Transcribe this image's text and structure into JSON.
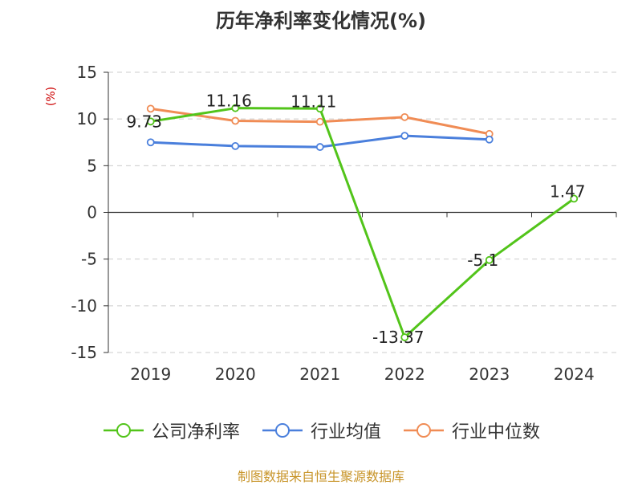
{
  "title": "历年净利率变化情况(%)",
  "footer": "制图数据来自恒生聚源数据库",
  "chart_data": {
    "type": "line",
    "title": "历年净利率变化情况(%)",
    "ylabel": "(%)",
    "ylim": [
      -15,
      15
    ],
    "yticks": [
      15,
      10,
      5,
      0,
      -5,
      -10,
      -15
    ],
    "categories": [
      "2019",
      "2020",
      "2021",
      "2022",
      "2023",
      "2024"
    ],
    "grid": true,
    "legend_position": "bottom",
    "series": [
      {
        "name": "公司净利率",
        "color": "#52c41a",
        "values": [
          9.73,
          11.16,
          11.11,
          -13.37,
          -5.1,
          1.47
        ],
        "labels": [
          "9.73",
          "11.16",
          "11.11",
          "-13.37",
          "-5.1",
          "1.47"
        ]
      },
      {
        "name": "行业均值",
        "color": "#4a7fdc",
        "values": [
          7.5,
          7.1,
          7.0,
          8.2,
          7.8,
          null
        ]
      },
      {
        "name": "行业中位数",
        "color": "#f08c55",
        "values": [
          11.1,
          9.8,
          9.7,
          10.2,
          8.4,
          null
        ]
      }
    ]
  }
}
